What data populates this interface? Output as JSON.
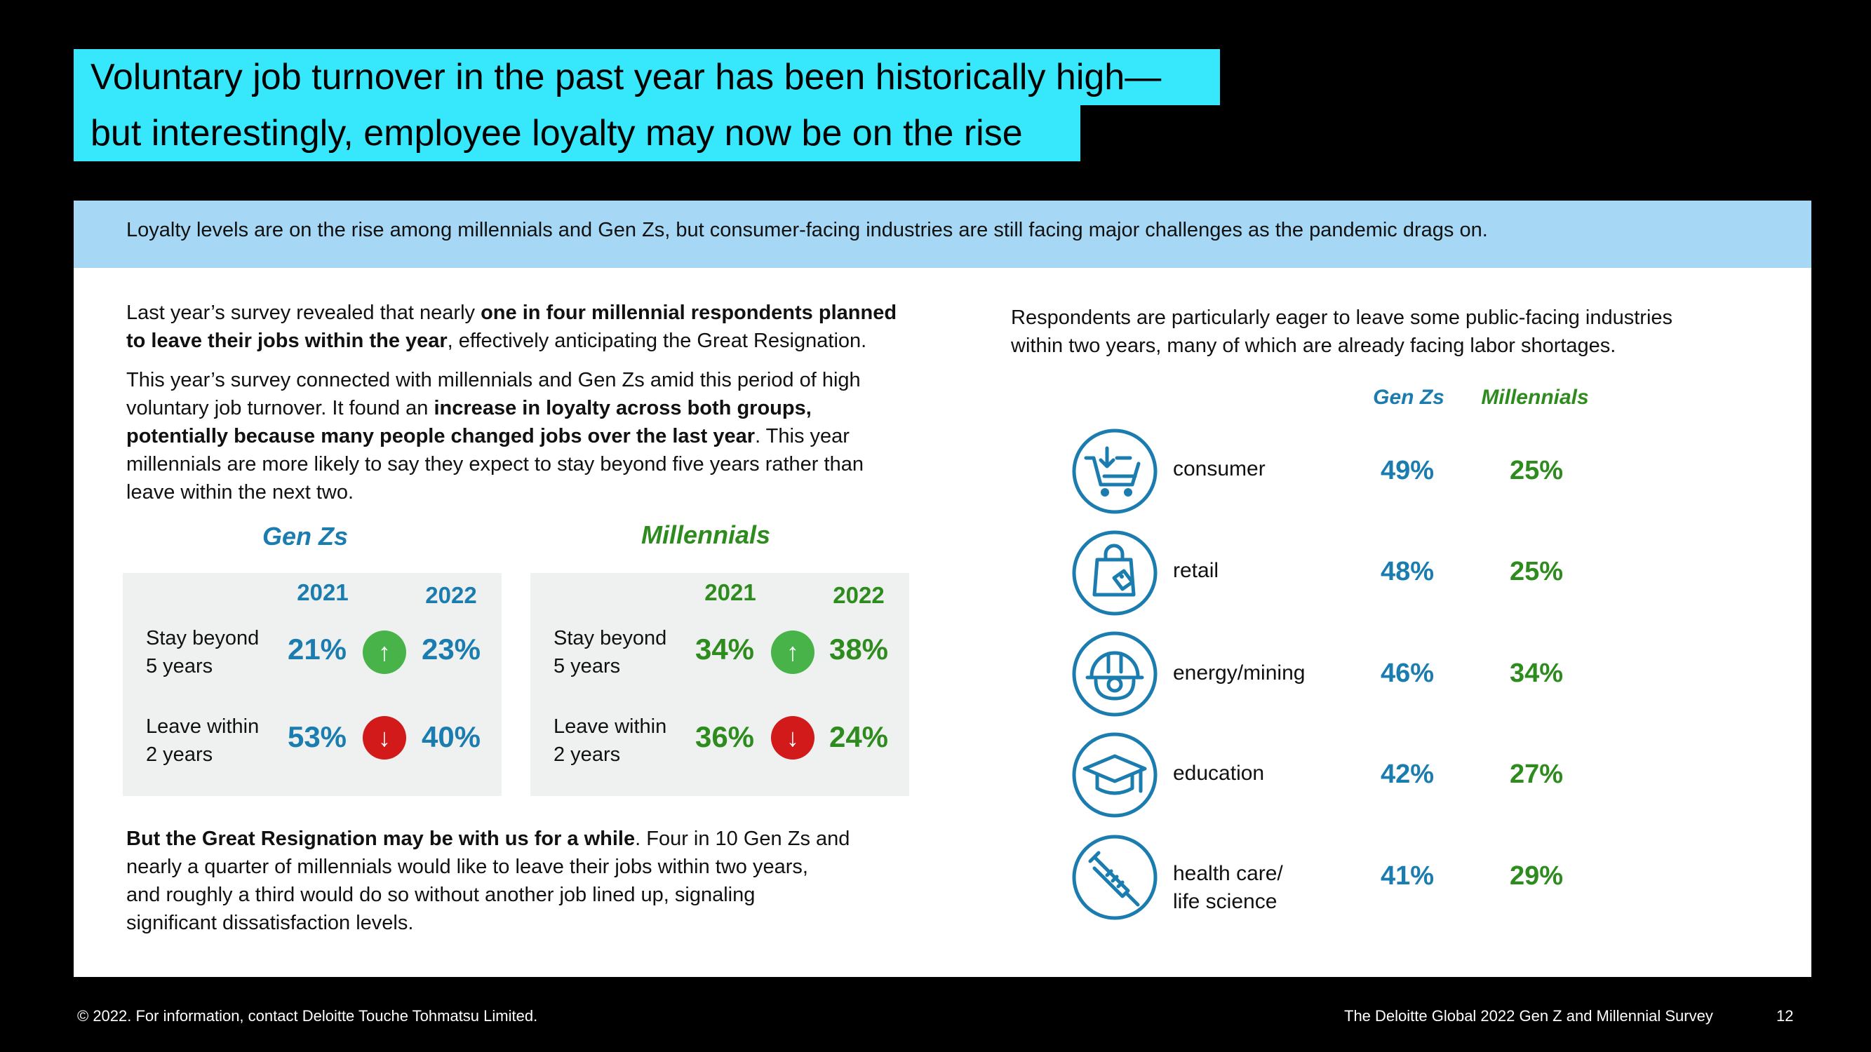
{
  "title": {
    "line1": "Voluntary job turnover in the past year has been historically high—",
    "line2": "but interestingly, employee loyalty may now be on the rise"
  },
  "banner": "Loyalty levels are on the rise among millennials and Gen Zs, but consumer-facing industries are still facing major challenges as the pandemic drags on.",
  "left": {
    "para1": {
      "pre": "Last year’s survey revealed that nearly ",
      "bold1": "one in four millennial respondents planned",
      "bold2": "to leave their jobs within the year",
      "post": ", effectively anticipating the Great Resignation."
    },
    "para2": {
      "l1": "This year’s survey connected with millennials and Gen Zs amid this period of high",
      "l2_pre": "voluntary job turnover. It found an ",
      "l2_bold": "increase in loyalty across both groups,",
      "l3_bold": "potentially because many people changed jobs over the last year",
      "l3_post": ". This year",
      "l4": "millennials are more likely to say they expect to stay beyond five years rather than",
      "l5": "leave within the next two."
    },
    "para3": {
      "bold": "But the Great Resignation may be with us for a while",
      "l1_post": ". Four in 10 Gen Zs and",
      "l2": "nearly a quarter of millennials would like to leave their jobs within two years,",
      "l3": "and roughly a third would do so without another job lined up, signaling",
      "l4": "significant dissatisfaction levels."
    }
  },
  "tables": {
    "genz": {
      "heading": "Gen Zs",
      "col2021": "2021",
      "col2022": "2022",
      "stay_label_1": "Stay beyond",
      "stay_label_2": "5 years",
      "stay_2021": "21%",
      "stay_2022": "23%",
      "stay_arrow": "↑",
      "leave_label_1": "Leave within",
      "leave_label_2": "2 years",
      "leave_2021": "53%",
      "leave_2022": "40%",
      "leave_arrow": "↓"
    },
    "millennials": {
      "heading": "Millennials",
      "col2021": "2021",
      "col2022": "2022",
      "stay_label_1": "Stay beyond",
      "stay_label_2": "5 years",
      "stay_2021": "34%",
      "stay_2022": "38%",
      "stay_arrow": "↑",
      "leave_label_1": "Leave within",
      "leave_label_2": "2 years",
      "leave_2021": "36%",
      "leave_2022": "24%",
      "leave_arrow": "↓"
    }
  },
  "right": {
    "intro1": "Respondents are particularly eager to leave some public-facing industries",
    "intro2": "within two years, many of which are already facing labor shortages.",
    "head_genz": "Gen Zs",
    "head_millennials": "Millennials",
    "industries": [
      {
        "label": "consumer",
        "genz": "49%",
        "millennials": "25%",
        "icon": "shopping-cart-icon"
      },
      {
        "label": "retail",
        "genz": "48%",
        "millennials": "25%",
        "icon": "shopping-bag-icon"
      },
      {
        "label": "energy/mining",
        "genz": "46%",
        "millennials": "34%",
        "icon": "hard-hat-icon"
      },
      {
        "label": "education",
        "genz": "42%",
        "millennials": "27%",
        "icon": "graduation-cap-icon"
      },
      {
        "label": "health care/",
        "label2": "life science",
        "genz": "41%",
        "millennials": "29%",
        "icon": "syringe-icon"
      }
    ]
  },
  "footer": {
    "left": "© 2022. For information, contact Deloitte Touche Tohmatsu Limited.",
    "right": "The Deloitte Global 2022 Gen Z and Millennial Survey",
    "page": "12"
  },
  "colors": {
    "title_bg": "#37E7FB",
    "banner_bg": "#A6D8F5",
    "genz_blue": "#1B7CB0",
    "millennial_green": "#2E8B1E",
    "up_green": "#48B348",
    "down_red": "#D21A1A"
  }
}
